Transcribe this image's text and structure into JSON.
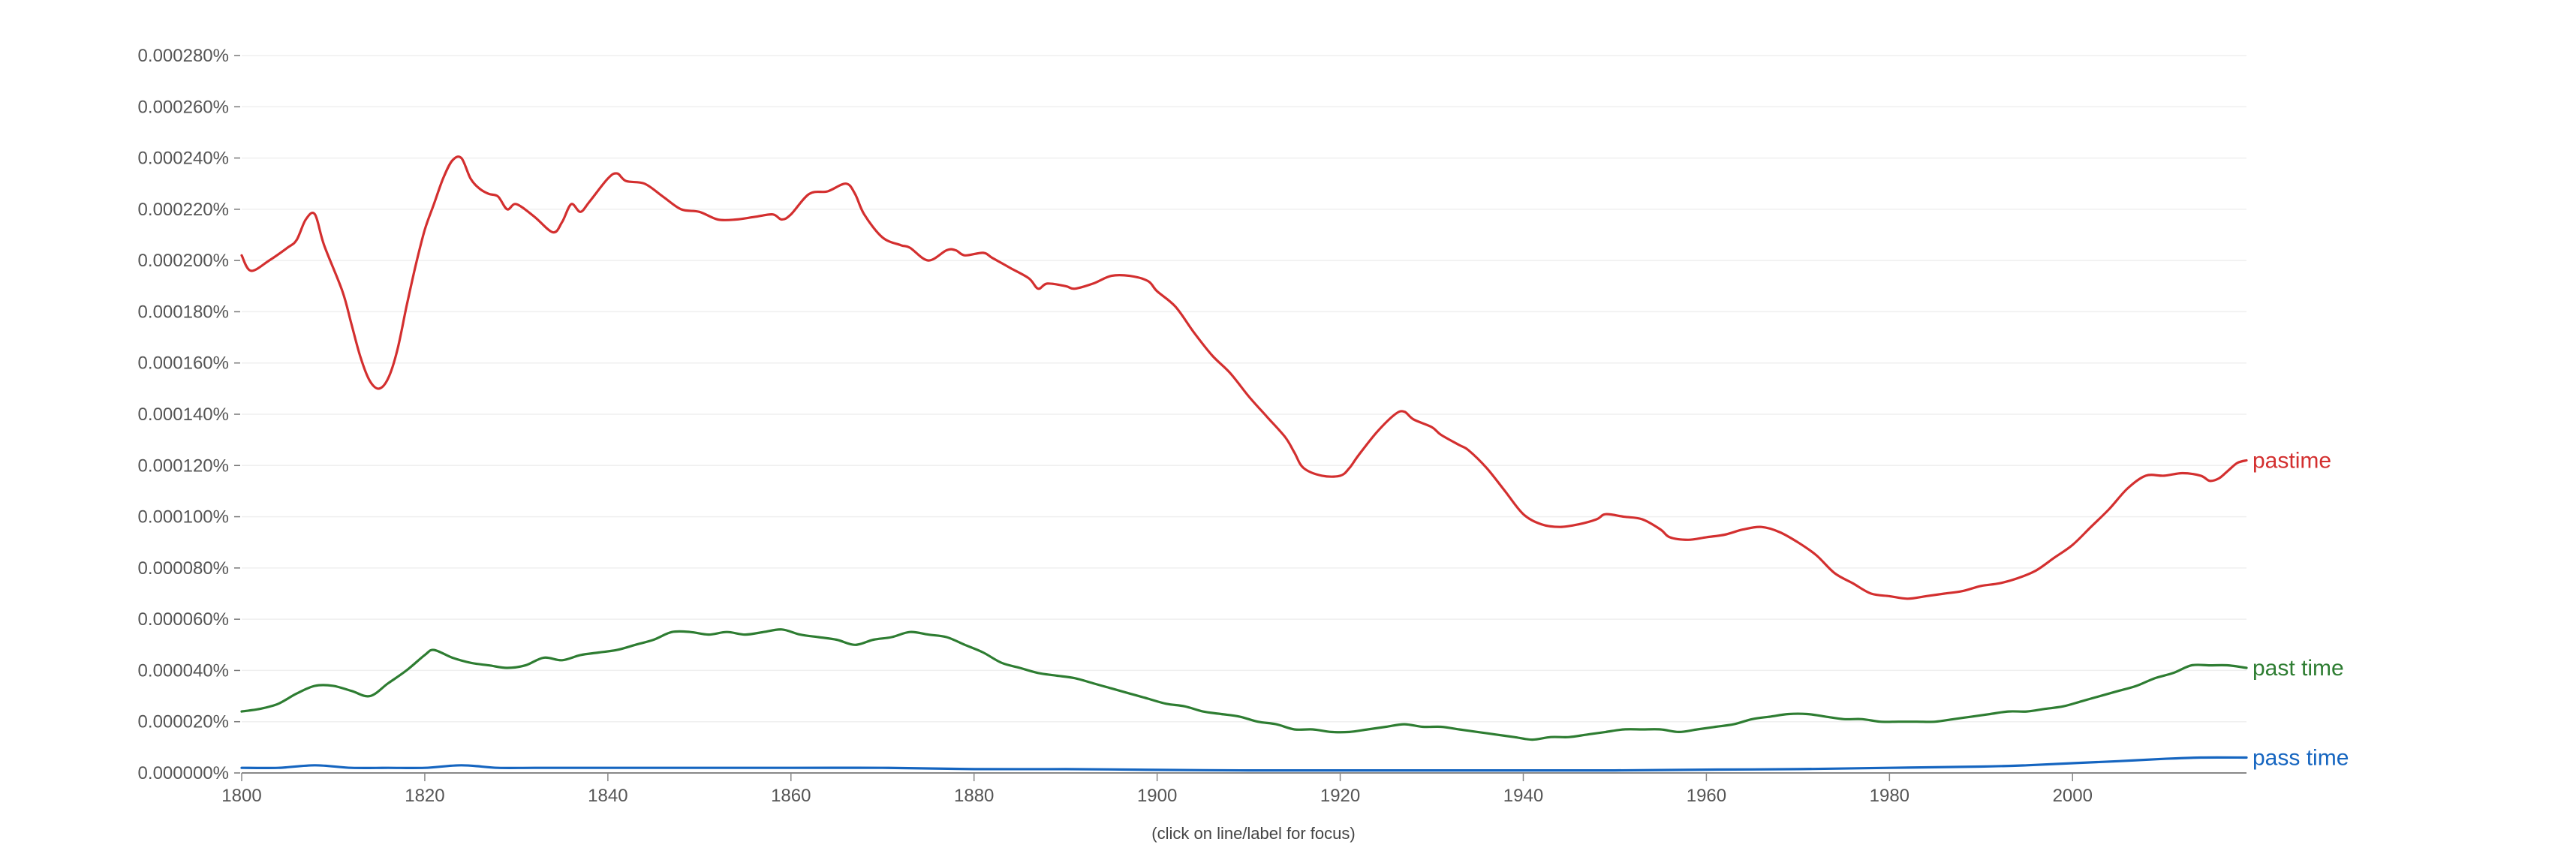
{
  "chart_data": {
    "type": "line",
    "title": "",
    "xlabel": "",
    "ylabel": "",
    "xlim": [
      1800,
      2019
    ],
    "ylim": [
      0,
      0.00028
    ],
    "x_ticks": [
      1800,
      1820,
      1840,
      1860,
      1880,
      1900,
      1920,
      1940,
      1960,
      1980,
      2000
    ],
    "y_ticks": [
      "0.000000%",
      "0.000020%",
      "0.000040%",
      "0.000060%",
      "0.000080%",
      "0.000100%",
      "0.000120%",
      "0.000140%",
      "0.000160%",
      "0.000180%",
      "0.000200%",
      "0.000220%",
      "0.000240%",
      "0.000260%",
      "0.000280%"
    ],
    "y_tick_values": [
      0,
      2e-05,
      4e-05,
      6e-05,
      8e-05,
      0.0001,
      0.00012,
      0.00014,
      0.00016,
      0.00018,
      0.0002,
      0.00022,
      0.00024,
      0.00026,
      0.00028
    ],
    "grid": true,
    "series": [
      {
        "name": "pastime",
        "color": "#d32f2f",
        "points": [
          [
            1800,
            0.000202
          ],
          [
            1801,
            0.000196
          ],
          [
            1803,
            0.0002
          ],
          [
            1805,
            0.000205
          ],
          [
            1806,
            0.000208
          ],
          [
            1807,
            0.000216
          ],
          [
            1808,
            0.000218
          ],
          [
            1809,
            0.000206
          ],
          [
            1811,
            0.000188
          ],
          [
            1812,
            0.000175
          ],
          [
            1813,
            0.000162
          ],
          [
            1814,
            0.000153
          ],
          [
            1815,
            0.00015
          ],
          [
            1816,
            0.000154
          ],
          [
            1817,
            0.000165
          ],
          [
            1818,
            0.000182
          ],
          [
            1819,
            0.000198
          ],
          [
            1820,
            0.000212
          ],
          [
            1821,
            0.000222
          ],
          [
            1822,
            0.000232
          ],
          [
            1823,
            0.000239
          ],
          [
            1824,
            0.00024
          ],
          [
            1825,
            0.000232
          ],
          [
            1826,
            0.000228
          ],
          [
            1827,
            0.000226
          ],
          [
            1828,
            0.000225
          ],
          [
            1829,
            0.00022
          ],
          [
            1830,
            0.000222
          ],
          [
            1832,
            0.000217
          ],
          [
            1834,
            0.000211
          ],
          [
            1835,
            0.000215
          ],
          [
            1836,
            0.000222
          ],
          [
            1837,
            0.000219
          ],
          [
            1838,
            0.000223
          ],
          [
            1840,
            0.000232
          ],
          [
            1841,
            0.000234
          ],
          [
            1842,
            0.000231
          ],
          [
            1844,
            0.00023
          ],
          [
            1846,
            0.000225
          ],
          [
            1848,
            0.00022
          ],
          [
            1850,
            0.000219
          ],
          [
            1852,
            0.000216
          ],
          [
            1854,
            0.000216
          ],
          [
            1856,
            0.000217
          ],
          [
            1858,
            0.000218
          ],
          [
            1859,
            0.000216
          ],
          [
            1860,
            0.000218
          ],
          [
            1862,
            0.000226
          ],
          [
            1864,
            0.000227
          ],
          [
            1866,
            0.00023
          ],
          [
            1867,
            0.000226
          ],
          [
            1868,
            0.000218
          ],
          [
            1870,
            0.000209
          ],
          [
            1872,
            0.000206
          ],
          [
            1873,
            0.000205
          ],
          [
            1875,
            0.0002
          ],
          [
            1877,
            0.000204
          ],
          [
            1878,
            0.000204
          ],
          [
            1879,
            0.000202
          ],
          [
            1881,
            0.000203
          ],
          [
            1882,
            0.000201
          ],
          [
            1884,
            0.000197
          ],
          [
            1886,
            0.000193
          ],
          [
            1887,
            0.000189
          ],
          [
            1888,
            0.000191
          ],
          [
            1890,
            0.00019
          ],
          [
            1891,
            0.000189
          ],
          [
            1893,
            0.000191
          ],
          [
            1895,
            0.000194
          ],
          [
            1897,
            0.000194
          ],
          [
            1899,
            0.000192
          ],
          [
            1900,
            0.000188
          ],
          [
            1902,
            0.000182
          ],
          [
            1904,
            0.000172
          ],
          [
            1906,
            0.000163
          ],
          [
            1908,
            0.000156
          ],
          [
            1910,
            0.000147
          ],
          [
            1912,
            0.000139
          ],
          [
            1914,
            0.000131
          ],
          [
            1915,
            0.000125
          ],
          [
            1916,
            0.000119
          ],
          [
            1918,
            0.000116
          ],
          [
            1920,
            0.000116
          ],
          [
            1921,
            0.000119
          ],
          [
            1922,
            0.000124
          ],
          [
            1924,
            0.000133
          ],
          [
            1926,
            0.00014
          ],
          [
            1927,
            0.000141
          ],
          [
            1928,
            0.000138
          ],
          [
            1930,
            0.000135
          ],
          [
            1931,
            0.000132
          ],
          [
            1933,
            0.000128
          ],
          [
            1934,
            0.000126
          ],
          [
            1936,
            0.000119
          ],
          [
            1938,
            0.00011
          ],
          [
            1940,
            0.000101
          ],
          [
            1942,
            9.7e-05
          ],
          [
            1944,
            9.6e-05
          ],
          [
            1946,
            9.7e-05
          ],
          [
            1948,
            9.9e-05
          ],
          [
            1949,
            0.000101
          ],
          [
            1951,
            0.0001
          ],
          [
            1953,
            9.9e-05
          ],
          [
            1955,
            9.5e-05
          ],
          [
            1956,
            9.2e-05
          ],
          [
            1958,
            9.1e-05
          ],
          [
            1960,
            9.2e-05
          ],
          [
            1962,
            9.3e-05
          ],
          [
            1964,
            9.5e-05
          ],
          [
            1966,
            9.6e-05
          ],
          [
            1968,
            9.4e-05
          ],
          [
            1970,
            9e-05
          ],
          [
            1972,
            8.5e-05
          ],
          [
            1974,
            7.8e-05
          ],
          [
            1976,
            7.4e-05
          ],
          [
            1978,
            7e-05
          ],
          [
            1980,
            6.9e-05
          ],
          [
            1982,
            6.8e-05
          ],
          [
            1984,
            6.9e-05
          ],
          [
            1986,
            7e-05
          ],
          [
            1988,
            7.1e-05
          ],
          [
            1990,
            7.3e-05
          ],
          [
            1992,
            7.4e-05
          ],
          [
            1994,
            7.6e-05
          ],
          [
            1996,
            7.9e-05
          ],
          [
            1998,
            8.4e-05
          ],
          [
            2000,
            8.9e-05
          ],
          [
            2002,
            9.6e-05
          ],
          [
            2004,
            0.000103
          ],
          [
            2006,
            0.000111
          ],
          [
            2008,
            0.000116
          ],
          [
            2010,
            0.000116
          ],
          [
            2012,
            0.000117
          ],
          [
            2014,
            0.000116
          ],
          [
            2015,
            0.000114
          ],
          [
            2016,
            0.000115
          ],
          [
            2017,
            0.000118
          ],
          [
            2018,
            0.000121
          ],
          [
            2019,
            0.000122
          ]
        ]
      },
      {
        "name": "past time",
        "color": "#2e7d32",
        "points": [
          [
            1800,
            2.4e-05
          ],
          [
            1802,
            2.5e-05
          ],
          [
            1804,
            2.7e-05
          ],
          [
            1806,
            3.1e-05
          ],
          [
            1808,
            3.4e-05
          ],
          [
            1810,
            3.4e-05
          ],
          [
            1812,
            3.2e-05
          ],
          [
            1814,
            3e-05
          ],
          [
            1816,
            3.5e-05
          ],
          [
            1818,
            4e-05
          ],
          [
            1820,
            4.6e-05
          ],
          [
            1821,
            4.8e-05
          ],
          [
            1823,
            4.5e-05
          ],
          [
            1825,
            4.3e-05
          ],
          [
            1827,
            4.2e-05
          ],
          [
            1829,
            4.1e-05
          ],
          [
            1831,
            4.2e-05
          ],
          [
            1833,
            4.5e-05
          ],
          [
            1835,
            4.4e-05
          ],
          [
            1837,
            4.6e-05
          ],
          [
            1839,
            4.7e-05
          ],
          [
            1841,
            4.8e-05
          ],
          [
            1843,
            5e-05
          ],
          [
            1845,
            5.2e-05
          ],
          [
            1847,
            5.5e-05
          ],
          [
            1849,
            5.5e-05
          ],
          [
            1851,
            5.4e-05
          ],
          [
            1853,
            5.5e-05
          ],
          [
            1855,
            5.4e-05
          ],
          [
            1857,
            5.5e-05
          ],
          [
            1859,
            5.6e-05
          ],
          [
            1861,
            5.4e-05
          ],
          [
            1863,
            5.3e-05
          ],
          [
            1865,
            5.2e-05
          ],
          [
            1867,
            5e-05
          ],
          [
            1869,
            5.2e-05
          ],
          [
            1871,
            5.3e-05
          ],
          [
            1873,
            5.5e-05
          ],
          [
            1875,
            5.4e-05
          ],
          [
            1877,
            5.3e-05
          ],
          [
            1879,
            5e-05
          ],
          [
            1881,
            4.7e-05
          ],
          [
            1883,
            4.3e-05
          ],
          [
            1885,
            4.1e-05
          ],
          [
            1887,
            3.9e-05
          ],
          [
            1889,
            3.8e-05
          ],
          [
            1891,
            3.7e-05
          ],
          [
            1893,
            3.5e-05
          ],
          [
            1895,
            3.3e-05
          ],
          [
            1897,
            3.1e-05
          ],
          [
            1899,
            2.9e-05
          ],
          [
            1901,
            2.7e-05
          ],
          [
            1903,
            2.6e-05
          ],
          [
            1905,
            2.4e-05
          ],
          [
            1907,
            2.3e-05
          ],
          [
            1909,
            2.2e-05
          ],
          [
            1911,
            2e-05
          ],
          [
            1913,
            1.9e-05
          ],
          [
            1915,
            1.7e-05
          ],
          [
            1917,
            1.7e-05
          ],
          [
            1919,
            1.6e-05
          ],
          [
            1921,
            1.6e-05
          ],
          [
            1923,
            1.7e-05
          ],
          [
            1925,
            1.8e-05
          ],
          [
            1927,
            1.9e-05
          ],
          [
            1929,
            1.8e-05
          ],
          [
            1931,
            1.8e-05
          ],
          [
            1933,
            1.7e-05
          ],
          [
            1935,
            1.6e-05
          ],
          [
            1937,
            1.5e-05
          ],
          [
            1939,
            1.4e-05
          ],
          [
            1941,
            1.3e-05
          ],
          [
            1943,
            1.4e-05
          ],
          [
            1945,
            1.4e-05
          ],
          [
            1947,
            1.5e-05
          ],
          [
            1949,
            1.6e-05
          ],
          [
            1951,
            1.7e-05
          ],
          [
            1953,
            1.7e-05
          ],
          [
            1955,
            1.7e-05
          ],
          [
            1957,
            1.6e-05
          ],
          [
            1959,
            1.7e-05
          ],
          [
            1961,
            1.8e-05
          ],
          [
            1963,
            1.9e-05
          ],
          [
            1965,
            2.1e-05
          ],
          [
            1967,
            2.2e-05
          ],
          [
            1969,
            2.3e-05
          ],
          [
            1971,
            2.3e-05
          ],
          [
            1973,
            2.2e-05
          ],
          [
            1975,
            2.1e-05
          ],
          [
            1977,
            2.1e-05
          ],
          [
            1979,
            2e-05
          ],
          [
            1981,
            2e-05
          ],
          [
            1983,
            2e-05
          ],
          [
            1985,
            2e-05
          ],
          [
            1987,
            2.1e-05
          ],
          [
            1989,
            2.2e-05
          ],
          [
            1991,
            2.3e-05
          ],
          [
            1993,
            2.4e-05
          ],
          [
            1995,
            2.4e-05
          ],
          [
            1997,
            2.5e-05
          ],
          [
            1999,
            2.6e-05
          ],
          [
            2001,
            2.8e-05
          ],
          [
            2003,
            3e-05
          ],
          [
            2005,
            3.2e-05
          ],
          [
            2007,
            3.4e-05
          ],
          [
            2009,
            3.7e-05
          ],
          [
            2011,
            3.9e-05
          ],
          [
            2013,
            4.2e-05
          ],
          [
            2015,
            4.2e-05
          ],
          [
            2017,
            4.2e-05
          ],
          [
            2019,
            4.1e-05
          ]
        ]
      },
      {
        "name": "pass time",
        "color": "#1565c0",
        "points": [
          [
            1800,
            2e-06
          ],
          [
            1804,
            2e-06
          ],
          [
            1808,
            3e-06
          ],
          [
            1812,
            2e-06
          ],
          [
            1816,
            2e-06
          ],
          [
            1820,
            2e-06
          ],
          [
            1824,
            3e-06
          ],
          [
            1828,
            2e-06
          ],
          [
            1832,
            2e-06
          ],
          [
            1840,
            2e-06
          ],
          [
            1850,
            2e-06
          ],
          [
            1860,
            2e-06
          ],
          [
            1870,
            2e-06
          ],
          [
            1880,
            1.5e-06
          ],
          [
            1890,
            1.5e-06
          ],
          [
            1900,
            1.2e-06
          ],
          [
            1910,
            1e-06
          ],
          [
            1920,
            1e-06
          ],
          [
            1930,
            1e-06
          ],
          [
            1940,
            1e-06
          ],
          [
            1950,
            1e-06
          ],
          [
            1960,
            1.3e-06
          ],
          [
            1970,
            1.5e-06
          ],
          [
            1980,
            2e-06
          ],
          [
            1990,
            2.5e-06
          ],
          [
            1995,
            3e-06
          ],
          [
            2000,
            3.8e-06
          ],
          [
            2005,
            4.6e-06
          ],
          [
            2010,
            5.5e-06
          ],
          [
            2014,
            6e-06
          ],
          [
            2019,
            6e-06
          ]
        ]
      }
    ],
    "footnote": "(click on line/label for focus)"
  }
}
